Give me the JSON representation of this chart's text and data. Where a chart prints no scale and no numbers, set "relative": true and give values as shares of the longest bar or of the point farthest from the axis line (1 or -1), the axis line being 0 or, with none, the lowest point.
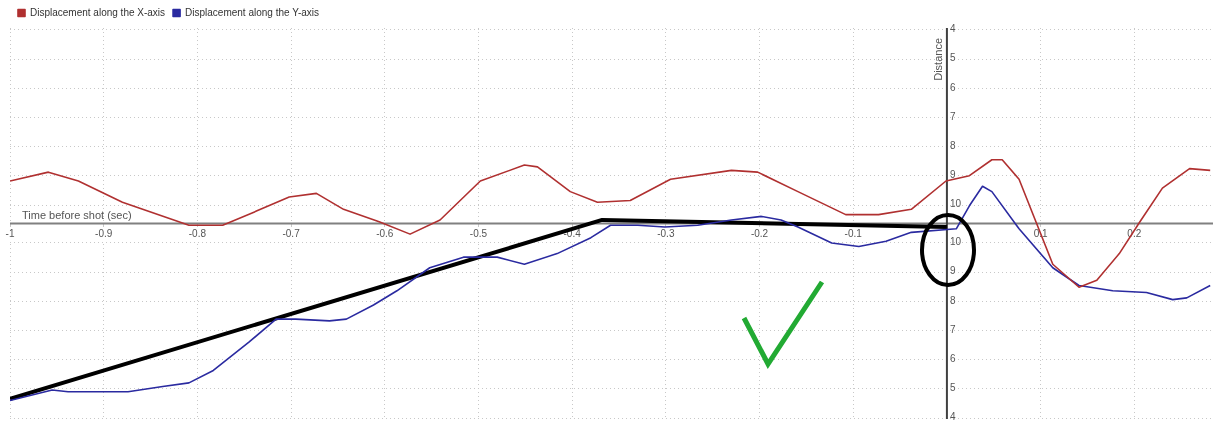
{
  "chart_data": {
    "type": "line",
    "xlabel": "Time before shot (sec)",
    "relative": true,
    "xlim": [
      -1,
      0.284
    ],
    "xticks": [
      {
        "value": -1,
        "label": "-1"
      },
      -0.9,
      -0.8,
      -0.7,
      -0.6,
      -0.5,
      -0.4,
      -0.3,
      -0.2,
      -0.1,
      {
        "value": 0,
        "label": null
      },
      0.1,
      0.2
    ],
    "annotations": [
      "Distance",
      "4",
      "5",
      "6",
      "7",
      "8",
      "9",
      "10",
      "10",
      "9",
      "8",
      "7",
      "6",
      "5",
      "4"
    ],
    "grid": true,
    "legend": "top left",
    "marker": "none",
    "line_style": "solid",
    "series": [
      {
        "name": "Displacement along the X-axis",
        "color": "#b03030",
        "x": [
          -1,
          -0.959,
          -0.927,
          -0.88,
          -0.809,
          -0.773,
          -0.737,
          -0.702,
          -0.673,
          -0.644,
          -0.606,
          -0.573,
          -0.541,
          -0.498,
          -0.451,
          -0.437,
          -0.402,
          -0.373,
          -0.338,
          -0.295,
          -0.23,
          -0.202,
          -0.159,
          -0.108,
          -0.073,
          -0.038,
          -0.001,
          0.024,
          0.048,
          0.059,
          0.077,
          0.095,
          0.113,
          0.141,
          0.16,
          0.184,
          0.206,
          0.23,
          0.259,
          0.281
        ],
        "values": [
          0.24,
          0.29,
          0.24,
          0.12,
          -0.01,
          -0.01,
          0.07,
          0.15,
          0.17,
          0.08,
          0.01,
          -0.06,
          0.02,
          0.24,
          0.33,
          0.32,
          0.18,
          0.12,
          0.13,
          0.25,
          0.3,
          0.29,
          0.18,
          0.05,
          0.05,
          0.08,
          0.24,
          0.27,
          0.36,
          0.36,
          0.25,
          0.01,
          -0.23,
          -0.36,
          -0.32,
          -0.17,
          0.01,
          0.2,
          0.31,
          0.3
        ]
      },
      {
        "name": "Displacement along the Y-axis",
        "color": "#2a2aa0",
        "x": [
          -1,
          -0.955,
          -0.938,
          -0.874,
          -0.837,
          -0.809,
          -0.783,
          -0.745,
          -0.716,
          -0.695,
          -0.659,
          -0.641,
          -0.612,
          -0.587,
          -0.552,
          -0.516,
          -0.48,
          -0.451,
          -0.416,
          -0.38,
          -0.359,
          -0.33,
          -0.301,
          -0.266,
          -0.23,
          -0.198,
          -0.177,
          -0.159,
          -0.123,
          -0.094,
          -0.065,
          -0.038,
          0.01,
          0.024,
          0.038,
          0.048,
          0.077,
          0.113,
          0.141,
          0.177,
          0.213,
          0.241,
          0.256,
          0.281
        ],
        "values": [
          -1,
          -0.94,
          -0.95,
          -0.95,
          -0.92,
          -0.9,
          -0.83,
          -0.67,
          -0.54,
          -0.54,
          -0.55,
          -0.54,
          -0.46,
          -0.38,
          -0.25,
          -0.19,
          -0.19,
          -0.23,
          -0.17,
          -0.08,
          -0.01,
          -0.01,
          -0.02,
          -0.01,
          0.02,
          0.04,
          0.02,
          -0.02,
          -0.11,
          -0.13,
          -0.1,
          -0.05,
          -0.03,
          0.1,
          0.21,
          0.18,
          -0.03,
          -0.25,
          -0.35,
          -0.38,
          -0.39,
          -0.43,
          -0.42,
          -0.35
        ]
      },
      {
        "type": "line",
        "color": "#000000",
        "x": [
          -1,
          -0.368,
          0
        ],
        "values": [
          -0.99,
          0.02,
          -0.02
        ]
      }
    ]
  }
}
